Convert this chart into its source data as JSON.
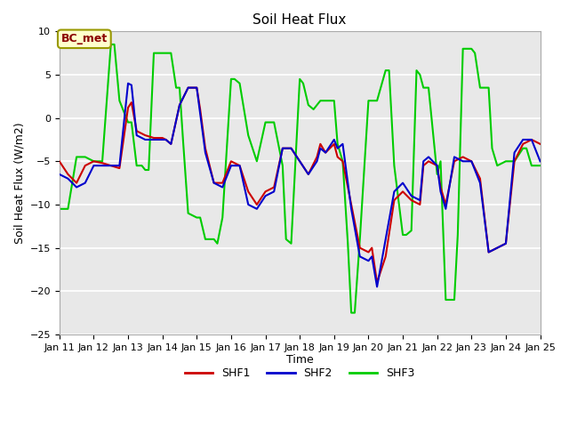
{
  "title": "Soil Heat Flux",
  "xlabel": "Time",
  "ylabel": "Soil Heat Flux (W/m2)",
  "ylim": [
    -25,
    10
  ],
  "xlim": [
    11,
    25
  ],
  "xticks": [
    11,
    12,
    13,
    14,
    15,
    16,
    17,
    18,
    19,
    20,
    21,
    22,
    23,
    24,
    25
  ],
  "xtick_labels": [
    "Jan 11",
    "Jan 12",
    "Jan 13",
    "Jan 14",
    "Jan 15",
    "Jan 16",
    "Jan 17",
    "Jan 18",
    "Jan 19",
    "Jan 20",
    "Jan 21",
    "Jan 22",
    "Jan 23",
    "Jan 24",
    "Jan 25"
  ],
  "yticks": [
    -25,
    -20,
    -15,
    -10,
    -5,
    0,
    5,
    10
  ],
  "grid_color": "#ffffff",
  "bg_color": "#e8e8e8",
  "legend_labels": [
    "SHF1",
    "SHF2",
    "SHF3"
  ],
  "legend_colors": [
    "#cc0000",
    "#0000cc",
    "#00cc00"
  ],
  "annotation_text": "BC_met",
  "annotation_box_color": "#ffffcc",
  "annotation_border_color": "#999900",
  "shf1_x": [
    11.0,
    11.25,
    11.5,
    11.75,
    12.0,
    12.25,
    12.5,
    12.75,
    13.0,
    13.1,
    13.25,
    13.5,
    13.75,
    14.0,
    14.1,
    14.25,
    14.5,
    14.75,
    15.0,
    15.1,
    15.25,
    15.5,
    15.75,
    16.0,
    16.25,
    16.5,
    16.75,
    17.0,
    17.25,
    17.5,
    17.75,
    18.0,
    18.25,
    18.5,
    18.6,
    18.75,
    19.0,
    19.1,
    19.25,
    19.5,
    19.75,
    20.0,
    20.1,
    20.25,
    20.5,
    20.75,
    21.0,
    21.25,
    21.5,
    21.6,
    21.75,
    22.0,
    22.1,
    22.25,
    22.5,
    22.75,
    23.0,
    23.25,
    23.5,
    23.75,
    24.0,
    24.25,
    24.5,
    24.75,
    25.0
  ],
  "shf1_y": [
    -5.0,
    -6.5,
    -7.5,
    -5.5,
    -5.0,
    -5.2,
    -5.5,
    -5.8,
    1.2,
    1.8,
    -1.5,
    -2.0,
    -2.3,
    -2.3,
    -2.5,
    -3.0,
    1.5,
    3.5,
    3.5,
    1.0,
    -3.5,
    -7.5,
    -7.5,
    -5.0,
    -5.5,
    -8.5,
    -10.0,
    -8.5,
    -8.0,
    -3.5,
    -3.5,
    -5.0,
    -6.5,
    -4.5,
    -3.0,
    -4.0,
    -3.0,
    -4.5,
    -5.0,
    -10.0,
    -15.0,
    -15.5,
    -15.0,
    -19.0,
    -16.0,
    -9.5,
    -8.5,
    -9.5,
    -10.0,
    -5.5,
    -5.0,
    -5.5,
    -8.0,
    -10.0,
    -5.0,
    -4.5,
    -5.0,
    -7.0,
    -15.5,
    -15.0,
    -14.5,
    -5.0,
    -3.0,
    -2.5,
    -3.0
  ],
  "shf2_x": [
    11.0,
    11.25,
    11.5,
    11.75,
    12.0,
    12.25,
    12.5,
    12.75,
    13.0,
    13.1,
    13.25,
    13.5,
    13.75,
    14.0,
    14.1,
    14.25,
    14.5,
    14.75,
    15.0,
    15.1,
    15.25,
    15.5,
    15.75,
    16.0,
    16.25,
    16.5,
    16.75,
    17.0,
    17.25,
    17.5,
    17.75,
    18.0,
    18.25,
    18.5,
    18.6,
    18.75,
    19.0,
    19.1,
    19.25,
    19.5,
    19.75,
    20.0,
    20.1,
    20.25,
    20.5,
    20.75,
    21.0,
    21.25,
    21.5,
    21.6,
    21.75,
    22.0,
    22.1,
    22.25,
    22.5,
    22.75,
    23.0,
    23.25,
    23.5,
    23.75,
    24.0,
    24.25,
    24.5,
    24.75,
    25.0
  ],
  "shf2_y": [
    -6.5,
    -7.0,
    -8.0,
    -7.5,
    -5.5,
    -5.5,
    -5.5,
    -5.5,
    4.0,
    3.8,
    -2.0,
    -2.5,
    -2.5,
    -2.5,
    -2.5,
    -3.0,
    1.5,
    3.5,
    3.5,
    0.5,
    -4.0,
    -7.5,
    -8.0,
    -5.5,
    -5.5,
    -10.0,
    -10.5,
    -9.0,
    -8.5,
    -3.5,
    -3.5,
    -5.0,
    -6.5,
    -5.0,
    -3.5,
    -4.0,
    -2.5,
    -3.5,
    -3.0,
    -10.5,
    -16.0,
    -16.5,
    -16.0,
    -19.5,
    -14.0,
    -8.5,
    -7.5,
    -9.0,
    -9.5,
    -5.0,
    -4.5,
    -5.5,
    -8.5,
    -10.5,
    -4.5,
    -5.0,
    -5.0,
    -7.5,
    -15.5,
    -15.0,
    -14.5,
    -4.0,
    -2.5,
    -2.5,
    -5.0
  ],
  "shf3_x": [
    11.0,
    11.1,
    11.25,
    11.5,
    11.75,
    12.0,
    12.1,
    12.25,
    12.5,
    12.6,
    12.75,
    13.0,
    13.1,
    13.25,
    13.4,
    13.5,
    13.6,
    13.75,
    14.0,
    14.1,
    14.25,
    14.4,
    14.5,
    14.6,
    14.75,
    15.0,
    15.1,
    15.25,
    15.5,
    15.6,
    15.75,
    16.0,
    16.1,
    16.25,
    16.5,
    16.75,
    17.0,
    17.1,
    17.25,
    17.5,
    17.6,
    17.75,
    18.0,
    18.1,
    18.25,
    18.4,
    18.5,
    18.6,
    18.75,
    19.0,
    19.1,
    19.25,
    19.4,
    19.5,
    19.6,
    19.75,
    20.0,
    20.1,
    20.25,
    20.5,
    20.6,
    20.75,
    21.0,
    21.1,
    21.25,
    21.4,
    21.5,
    21.6,
    21.75,
    22.0,
    22.1,
    22.25,
    22.5,
    22.6,
    22.75,
    23.0,
    23.1,
    23.25,
    23.4,
    23.5,
    23.6,
    23.75,
    24.0,
    24.1,
    24.25,
    24.5,
    24.6,
    24.75,
    25.0
  ],
  "shf3_y": [
    -10.5,
    -10.5,
    -10.5,
    -4.5,
    -4.5,
    -5.0,
    -5.0,
    -5.0,
    8.5,
    8.5,
    2.0,
    -0.5,
    -0.5,
    -5.5,
    -5.5,
    -6.0,
    -6.0,
    7.5,
    7.5,
    7.5,
    7.5,
    3.5,
    3.5,
    -2.5,
    -11.0,
    -11.5,
    -11.5,
    -14.0,
    -14.0,
    -14.5,
    -11.5,
    4.5,
    4.5,
    4.0,
    -2.0,
    -5.0,
    -0.5,
    -0.5,
    -0.5,
    -5.5,
    -14.0,
    -14.5,
    4.5,
    4.0,
    1.5,
    1.0,
    1.5,
    2.0,
    2.0,
    2.0,
    -3.0,
    -5.0,
    -14.5,
    -22.5,
    -22.5,
    -14.0,
    2.0,
    2.0,
    2.0,
    5.5,
    5.5,
    -5.5,
    -13.5,
    -13.5,
    -13.0,
    5.5,
    5.0,
    3.5,
    3.5,
    -6.5,
    -5.0,
    -21.0,
    -21.0,
    -13.5,
    8.0,
    8.0,
    7.5,
    3.5,
    3.5,
    3.5,
    -3.5,
    -5.5,
    -5.0,
    -5.0,
    -5.0,
    -3.5,
    -3.5,
    -5.5,
    -5.5
  ]
}
